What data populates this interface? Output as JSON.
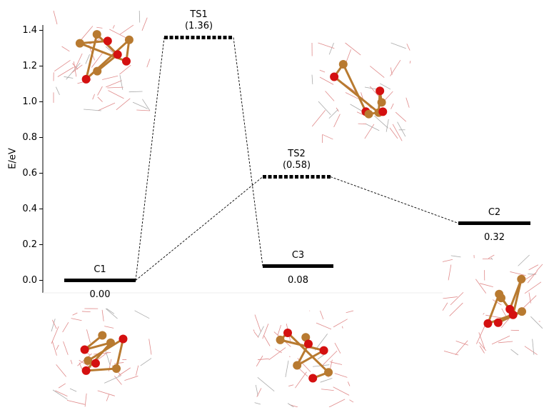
{
  "chart_data": {
    "type": "energy",
    "ylabel": "E/eV",
    "categories": [
      "C1",
      "TS1",
      "TS2",
      "C3",
      "C2"
    ],
    "values": [
      0.0,
      1.36,
      0.58,
      0.08,
      0.32
    ],
    "value_labels": [
      "0.00",
      "(1.36)",
      "(0.58)",
      "0.08",
      "0.32"
    ],
    "color": "#000000",
    "ylim": [
      -0.07,
      1.43
    ],
    "yticks": [
      {
        "value": 0,
        "label": "0.0"
      },
      0.2,
      0.4,
      0.6,
      0.8,
      {
        "value": 1,
        "label": "1.0"
      },
      1.2,
      1.4
    ]
  }
}
